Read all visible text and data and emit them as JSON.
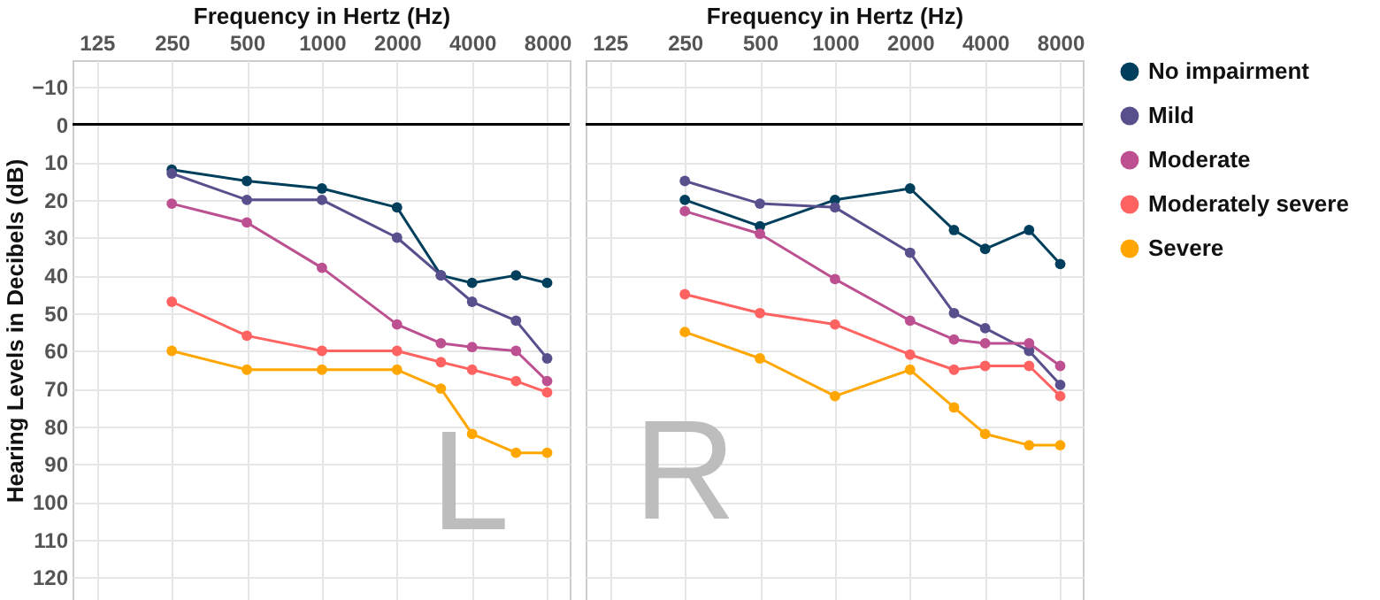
{
  "chart_data": [
    {
      "type": "line",
      "xlabel": "Frequency in Hertz (Hz)",
      "ylabel": "Hearing Levels in Decibels (dB)",
      "x": [
        250,
        500,
        1000,
        2000,
        3000,
        4000,
        6000,
        8000
      ],
      "log": "x",
      "xlim": [
        100,
        9850
      ],
      "xticks": [
        125,
        250,
        500,
        1000,
        2000,
        4000,
        8000
      ],
      "ylim": [
        126,
        -17
      ],
      "yticks": [
        -10,
        0,
        10,
        20,
        30,
        40,
        50,
        60,
        70,
        80,
        90,
        100,
        110,
        120
      ],
      "grid": true,
      "legend": "right",
      "marker": "circle",
      "line_style": "solid",
      "annotations": [
        "L"
      ],
      "ref_lines": [
        {
          "axis": "y",
          "value": 0,
          "color": "#000000"
        }
      ],
      "series": [
        {
          "name": "No impairment",
          "color": "#003f5c",
          "values": [
            12,
            15,
            17,
            22,
            40,
            42,
            40,
            42
          ]
        },
        {
          "name": "Mild",
          "color": "#58508d",
          "values": [
            13,
            20,
            20,
            30,
            40,
            47,
            52,
            62
          ]
        },
        {
          "name": "Moderate",
          "color": "#bc5090",
          "values": [
            21,
            26,
            38,
            53,
            58,
            59,
            60,
            68
          ]
        },
        {
          "name": "Moderately severe",
          "color": "#ff6361",
          "values": [
            47,
            56,
            60,
            60,
            63,
            65,
            68,
            71
          ]
        },
        {
          "name": "Severe",
          "color": "#ffa600",
          "values": [
            60,
            65,
            65,
            65,
            70,
            82,
            87,
            87
          ]
        }
      ]
    },
    {
      "type": "line",
      "xlabel": "Frequency in Hertz (Hz)",
      "x": [
        250,
        500,
        1000,
        2000,
        3000,
        4000,
        6000,
        8000
      ],
      "log": "x",
      "xlim": [
        100,
        9850
      ],
      "xticks": [
        125,
        250,
        500,
        1000,
        2000,
        4000,
        8000
      ],
      "ylim": [
        126,
        -17
      ],
      "yticks": [
        -10,
        0,
        10,
        20,
        30,
        40,
        50,
        60,
        70,
        80,
        90,
        100,
        110,
        120
      ],
      "tick_labels": "x",
      "grid": true,
      "legend": "right",
      "marker": "circle",
      "line_style": "solid",
      "annotations": [
        "R"
      ],
      "ref_lines": [
        {
          "axis": "y",
          "value": 0,
          "color": "#000000"
        }
      ],
      "series": [
        {
          "name": "No impairment",
          "color": "#003f5c",
          "values": [
            20,
            27,
            20,
            17,
            28,
            33,
            28,
            37
          ]
        },
        {
          "name": "Mild",
          "color": "#58508d",
          "values": [
            15,
            21,
            22,
            34,
            50,
            54,
            60,
            69
          ]
        },
        {
          "name": "Moderate",
          "color": "#bc5090",
          "values": [
            23,
            29,
            41,
            52,
            57,
            58,
            58,
            64
          ]
        },
        {
          "name": "Moderately severe",
          "color": "#ff6361",
          "values": [
            45,
            50,
            53,
            61,
            65,
            64,
            64,
            72
          ]
        },
        {
          "name": "Severe",
          "color": "#ffa600",
          "values": [
            55,
            62,
            72,
            65,
            75,
            82,
            85,
            85
          ]
        }
      ]
    }
  ]
}
